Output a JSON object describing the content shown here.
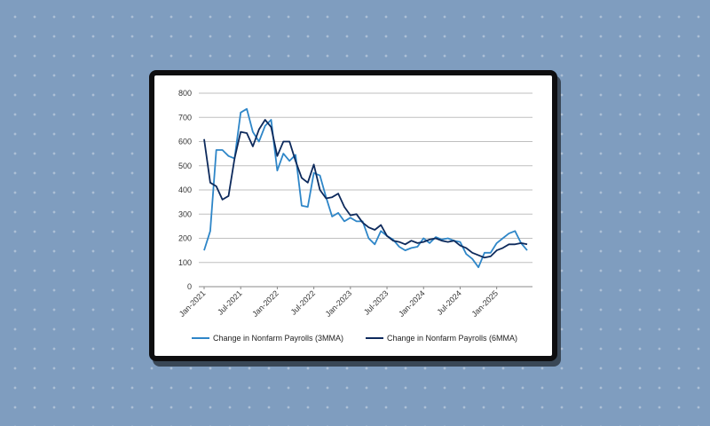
{
  "chart_data": {
    "type": "line",
    "title": "",
    "xlabel": "",
    "ylabel": "",
    "ylim": [
      0,
      800
    ],
    "yticks": [
      "0",
      "100",
      "200",
      "300",
      "400",
      "500",
      "600",
      "700",
      "800"
    ],
    "xticks": [
      "Jan-2021",
      "Jul-2021",
      "Jan-2022",
      "Jul-2022",
      "Jan-2023",
      "Jul-2023",
      "Jan-2024",
      "Jul-2024",
      "Jan-2025"
    ],
    "grid": true,
    "legend": "bottom",
    "colors": {
      "3mma": "#2e86c8",
      "6mma": "#0d2a5c",
      "grid": "#bfbfbf",
      "axis": "#888888"
    },
    "series": [
      {
        "name": "Change in Nonfarm Payrolls (3MMA)",
        "values": [
          150,
          230,
          565,
          565,
          540,
          530,
          720,
          735,
          640,
          600,
          665,
          690,
          480,
          550,
          520,
          545,
          335,
          330,
          470,
          460,
          370,
          290,
          305,
          270,
          285,
          270,
          270,
          200,
          175,
          230,
          210,
          195,
          165,
          150,
          160,
          165,
          200,
          180,
          205,
          195,
          200,
          190,
          185,
          135,
          115,
          80,
          140,
          140,
          180,
          200,
          220,
          230,
          180,
          150
        ]
      },
      {
        "name": "Change in Nonfarm Payrolls (6MMA)",
        "values": [
          610,
          430,
          415,
          360,
          375,
          530,
          640,
          635,
          580,
          650,
          690,
          660,
          540,
          600,
          600,
          520,
          450,
          430,
          505,
          400,
          365,
          370,
          385,
          330,
          295,
          300,
          265,
          245,
          235,
          255,
          210,
          190,
          185,
          175,
          190,
          180,
          185,
          195,
          200,
          190,
          185,
          190,
          170,
          160,
          140,
          130,
          120,
          125,
          150,
          160,
          175,
          175,
          180,
          175
        ]
      }
    ]
  }
}
